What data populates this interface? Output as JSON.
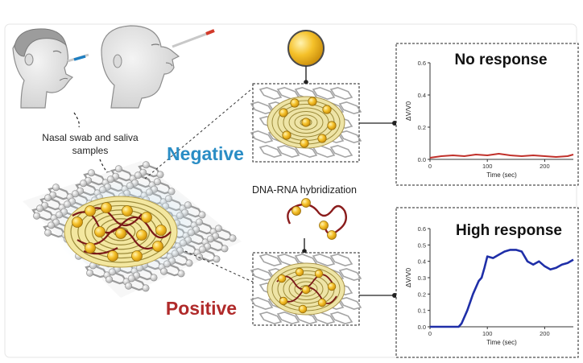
{
  "figure": {
    "sample_label_line1": "Nasal swab and saliva",
    "sample_label_line2": "samples",
    "negative_label": "Negative",
    "positive_label": "Positive",
    "hybridization_label": "DNA-RNA hybridization"
  },
  "colors": {
    "negative": "#2a8dc5",
    "positive": "#b02a2a",
    "low_trace": "#c0302a",
    "high_trace": "#1f2fa8",
    "gold": "#f2b81c",
    "graphene": "#9a9a9a"
  },
  "icons": [
    "person-swab-icon",
    "person-saliva-icon",
    "swab-stick-icon",
    "gold-nanoparticle-icon",
    "dna-rna-strand-icon",
    "graphene-sensor-icon"
  ],
  "chart_data": [
    {
      "type": "line",
      "title": "No response",
      "xlabel": "Time (sec)",
      "ylabel": "ΔV/V0",
      "xlim": [
        0,
        250
      ],
      "ylim": [
        0,
        0.6
      ],
      "xticks": [
        "0",
        "100",
        "200"
      ],
      "yticks": [
        "0.0",
        "0.2",
        "0.4",
        "0.6"
      ],
      "series": [
        {
          "name": "Negative",
          "x": [
            0,
            20,
            40,
            60,
            80,
            100,
            120,
            140,
            160,
            180,
            200,
            220,
            240,
            250
          ],
          "y": [
            0.01,
            0.02,
            0.025,
            0.02,
            0.03,
            0.025,
            0.035,
            0.025,
            0.02,
            0.025,
            0.02,
            0.015,
            0.02,
            0.03
          ]
        }
      ]
    },
    {
      "type": "line",
      "title": "High response",
      "xlabel": "Time (sec)",
      "ylabel": "ΔV/V0",
      "xlim": [
        0,
        250
      ],
      "ylim": [
        0,
        0.6
      ],
      "xticks": [
        "0",
        "100",
        "200"
      ],
      "yticks": [
        "0.0",
        "0.1",
        "0.2",
        "0.3",
        "0.4",
        "0.5",
        "0.6"
      ],
      "series": [
        {
          "name": "Positive",
          "x": [
            0,
            50,
            55,
            65,
            75,
            85,
            90,
            95,
            100,
            110,
            120,
            130,
            140,
            150,
            160,
            170,
            180,
            190,
            200,
            210,
            220,
            230,
            240,
            250
          ],
          "y": [
            0,
            0,
            0.02,
            0.1,
            0.2,
            0.28,
            0.3,
            0.36,
            0.43,
            0.42,
            0.44,
            0.46,
            0.47,
            0.47,
            0.46,
            0.4,
            0.38,
            0.4,
            0.37,
            0.35,
            0.36,
            0.38,
            0.39,
            0.41
          ]
        }
      ]
    }
  ]
}
